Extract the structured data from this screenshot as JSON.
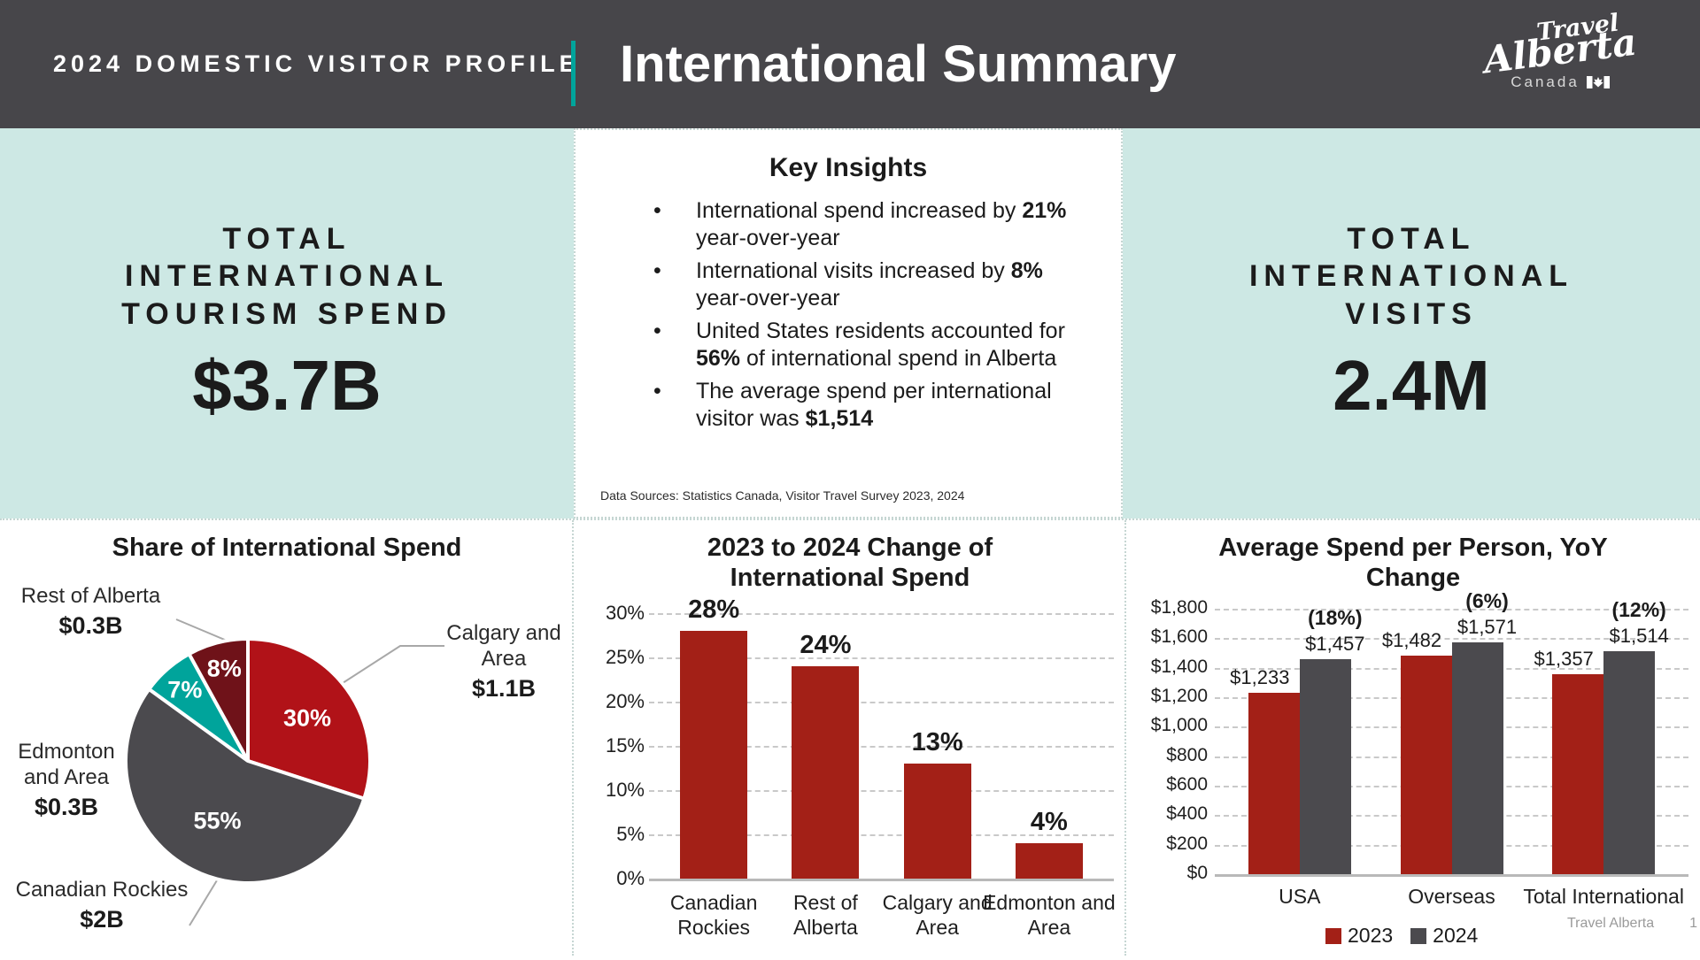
{
  "header": {
    "eyebrow": "2024 DOMESTIC VISITOR PROFILE",
    "title": "International Summary",
    "logo": {
      "line1": "Travel",
      "line2": "Alberta",
      "line3": "Canada"
    }
  },
  "stats": {
    "left": {
      "label": "TOTAL INTERNATIONAL TOURISM SPEND",
      "value": "$3.7B"
    },
    "right": {
      "label": "TOTAL INTERNATIONAL VISITS",
      "value": "2.4M"
    }
  },
  "key_insights": {
    "title": "Key Insights",
    "bullets": [
      [
        {
          "t": "International spend increased by ",
          "b": false
        },
        {
          "t": "21%",
          "b": true
        },
        {
          "t": " year-over-year",
          "b": false
        }
      ],
      [
        {
          "t": "International visits increased by ",
          "b": false
        },
        {
          "t": "8%",
          "b": true
        },
        {
          "t": " year-over-year",
          "b": false
        }
      ],
      [
        {
          "t": "United States residents accounted for ",
          "b": false
        },
        {
          "t": "56%",
          "b": true
        },
        {
          "t": " of international spend in Alberta",
          "b": false
        }
      ],
      [
        {
          "t": "The average spend per international visitor was ",
          "b": false
        },
        {
          "t": "$1,514",
          "b": true
        }
      ]
    ],
    "source": "Data Sources: Statistics Canada, Visitor Travel Survey 2023, 2024"
  },
  "colors": {
    "header_bg": "#47464a",
    "accent_teal": "#00a49b",
    "panel_teal": "#cde8e4",
    "chart_red": "#a32017",
    "chart_gray": "#4b4a4e",
    "pie_red": "#b11218",
    "pie_maroon": "#6f1219",
    "leader_gray": "#a8a8a8"
  },
  "chart_data": [
    {
      "type": "pie",
      "title": "Share of International Spend",
      "slices": [
        {
          "label": "Calgary and Area",
          "value_label": "$1.1B",
          "pct": 30,
          "color": "#b11218"
        },
        {
          "label": "Canadian Rockies",
          "value_label": "$2B",
          "pct": 55,
          "color": "#4b4a4e"
        },
        {
          "label": "Edmonton and Area",
          "value_label": "$0.3B",
          "pct": 7,
          "color": "#00a49b"
        },
        {
          "label": "Rest of Alberta",
          "value_label": "$0.3B",
          "pct": 8,
          "color": "#6f1219"
        }
      ],
      "start_angle_deg": 0,
      "direction": "clockwise",
      "inner_labels": [
        "30%",
        "55%",
        "7%",
        "8%"
      ]
    },
    {
      "type": "bar",
      "title": "2023 to 2024 Change of International Spend",
      "categories": [
        "Canadian Rockies",
        "Rest of Alberta",
        "Calgary and Area",
        "Edmonton and Area"
      ],
      "values": [
        28,
        24,
        13,
        4
      ],
      "value_labels": [
        "28%",
        "24%",
        "13%",
        "4%"
      ],
      "bar_color": "#a32017",
      "ylim": [
        0,
        30
      ],
      "ytick_step": 5,
      "ytick_suffix": "%",
      "grid": "dashed"
    },
    {
      "type": "bar",
      "title": "Average Spend per Person, YoY Change",
      "categories": [
        "USA",
        "Overseas",
        "Total International"
      ],
      "series": [
        {
          "name": "2023",
          "color": "#a32017",
          "values": [
            1233,
            1482,
            1357
          ]
        },
        {
          "name": "2024",
          "color": "#4b4a4e",
          "values": [
            1457,
            1571,
            1514
          ]
        }
      ],
      "value_labels": [
        [
          "$1,233",
          "$1,457"
        ],
        [
          "$1,482",
          "$1,571"
        ],
        [
          "$1,357",
          "$1,514"
        ]
      ],
      "pct_change_labels": [
        "(18%)",
        "(6%)",
        "(12%)"
      ],
      "ylim": [
        0,
        1800
      ],
      "ytick_step": 200,
      "ytick_prefix": "$",
      "grid": "dashed",
      "legend_position": "bottom"
    }
  ],
  "footer": {
    "brand": "Travel Alberta",
    "page": "1"
  }
}
